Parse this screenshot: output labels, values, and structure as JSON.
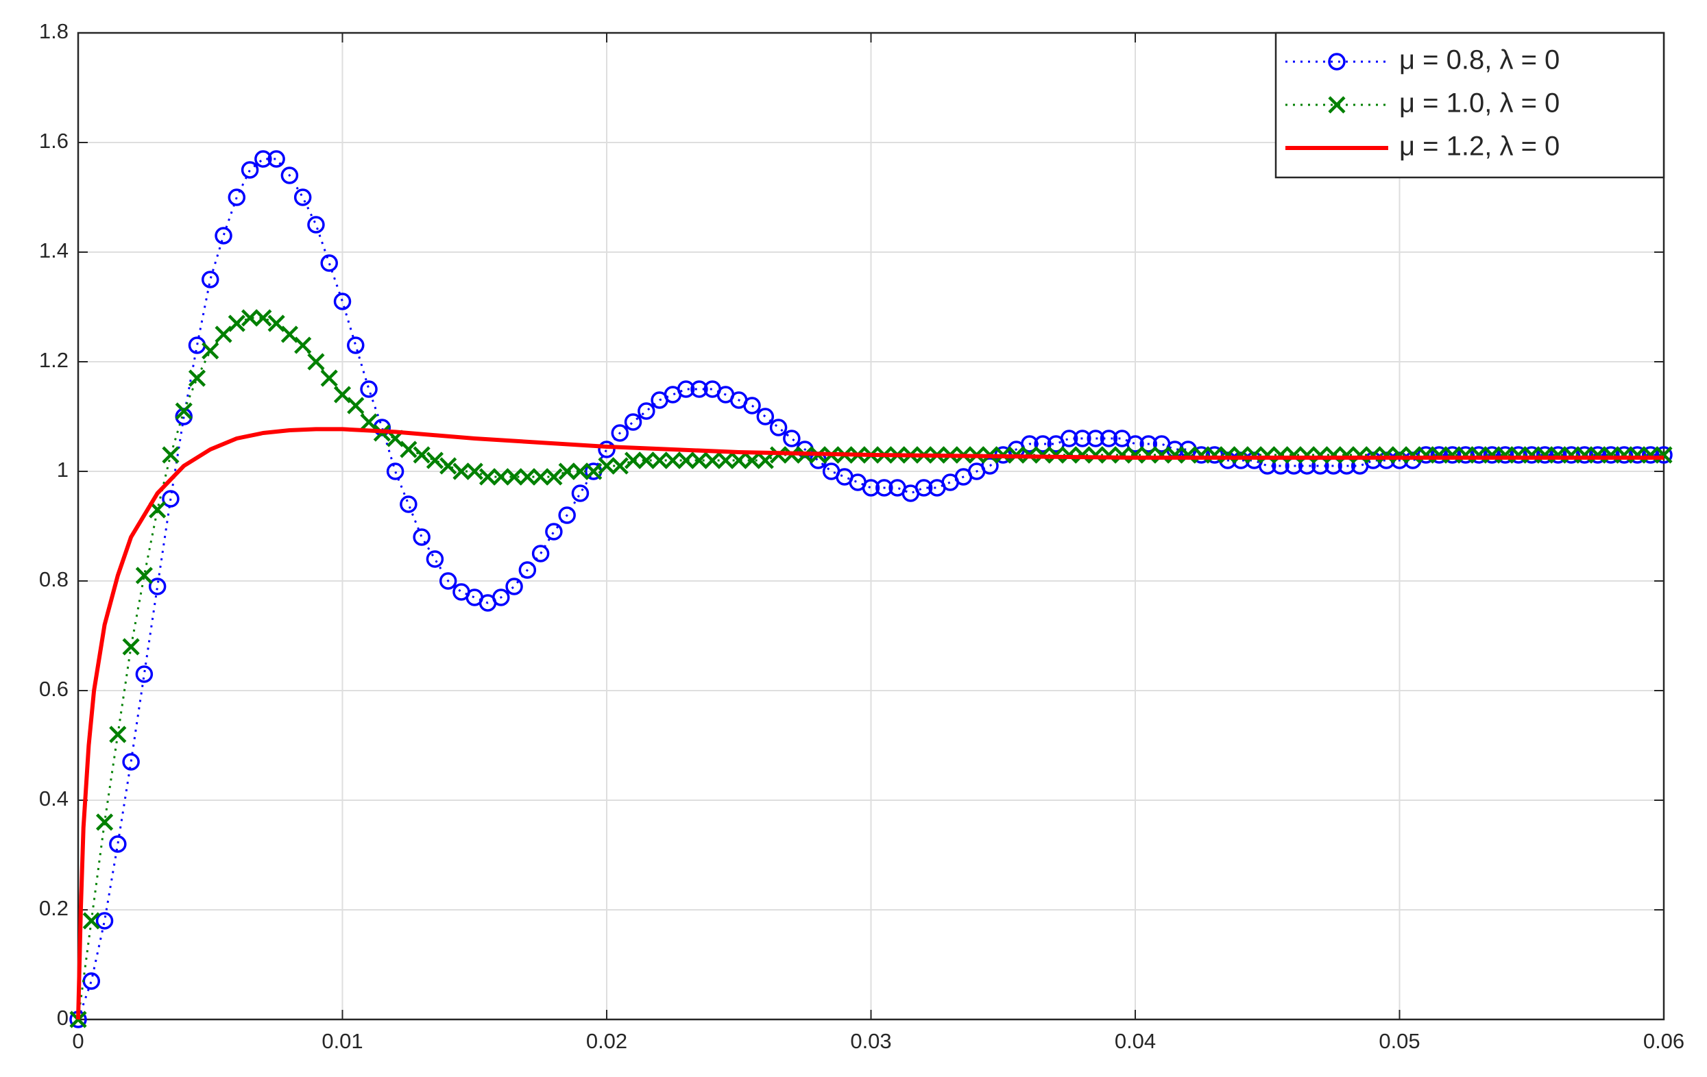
{
  "chart_data": {
    "type": "line",
    "x": [
      0,
      0.0005,
      0.001,
      0.0015,
      0.002,
      0.0025,
      0.003,
      0.0035,
      0.004,
      0.0045,
      0.005,
      0.0055,
      0.006,
      0.0065,
      0.007,
      0.0075,
      0.008,
      0.0085,
      0.009,
      0.0095,
      0.01,
      0.0105,
      0.011,
      0.0115,
      0.012,
      0.0125,
      0.013,
      0.0135,
      0.014,
      0.0145,
      0.015,
      0.0155,
      0.016,
      0.0165,
      0.017,
      0.0175,
      0.018,
      0.0185,
      0.019,
      0.0195,
      0.02,
      0.0205,
      0.021,
      0.0215,
      0.022,
      0.0225,
      0.023,
      0.0235,
      0.024,
      0.0245,
      0.025,
      0.0255,
      0.026,
      0.0265,
      0.027,
      0.0275,
      0.028,
      0.0285,
      0.029,
      0.0295,
      0.03,
      0.0305,
      0.031,
      0.0315,
      0.032,
      0.0325,
      0.033,
      0.0335,
      0.034,
      0.0345,
      0.035,
      0.0355,
      0.036,
      0.0365,
      0.037,
      0.0375,
      0.038,
      0.0385,
      0.039,
      0.0395,
      0.04,
      0.0405,
      0.041,
      0.0415,
      0.042,
      0.0425,
      0.043,
      0.0435,
      0.044,
      0.0445,
      0.045,
      0.0455,
      0.046,
      0.0465,
      0.047,
      0.0475,
      0.048,
      0.0485,
      0.049,
      0.0495,
      0.05,
      0.0505,
      0.051,
      0.0515,
      0.052,
      0.0525,
      0.053,
      0.0535,
      0.054,
      0.0545,
      0.055,
      0.0555,
      0.056,
      0.0565,
      0.057,
      0.0575,
      0.058,
      0.0585,
      0.059,
      0.0595,
      0.06
    ],
    "series": [
      {
        "name": "μ = 0.8, λ = 0",
        "color": "#0000ff",
        "marker": "circle",
        "dash": "dotted",
        "values": [
          0,
          0.07,
          0.18,
          0.32,
          0.47,
          0.63,
          0.79,
          0.95,
          1.1,
          1.23,
          1.35,
          1.43,
          1.5,
          1.55,
          1.57,
          1.57,
          1.54,
          1.5,
          1.45,
          1.38,
          1.31,
          1.23,
          1.15,
          1.08,
          1.0,
          0.94,
          0.88,
          0.84,
          0.8,
          0.78,
          0.77,
          0.76,
          0.77,
          0.79,
          0.82,
          0.85,
          0.89,
          0.92,
          0.96,
          1.0,
          1.04,
          1.07,
          1.09,
          1.11,
          1.13,
          1.14,
          1.15,
          1.15,
          1.15,
          1.14,
          1.13,
          1.12,
          1.1,
          1.08,
          1.06,
          1.04,
          1.02,
          1.0,
          0.99,
          0.98,
          0.97,
          0.97,
          0.97,
          0.96,
          0.97,
          0.97,
          0.98,
          0.99,
          1.0,
          1.01,
          1.03,
          1.04,
          1.05,
          1.05,
          1.05,
          1.06,
          1.06,
          1.06,
          1.06,
          1.06,
          1.05,
          1.05,
          1.05,
          1.04,
          1.04,
          1.03,
          1.03,
          1.02,
          1.02,
          1.02,
          1.01,
          1.01,
          1.01,
          1.01,
          1.01,
          1.01,
          1.01,
          1.01,
          1.02,
          1.02,
          1.02,
          1.02,
          1.03,
          1.03,
          1.03,
          1.03,
          1.03,
          1.03,
          1.03,
          1.03,
          1.03,
          1.03,
          1.03,
          1.03,
          1.03,
          1.03,
          1.03,
          1.03,
          1.03,
          1.03,
          1.03
        ]
      },
      {
        "name": "μ = 1.0, λ = 0",
        "color": "#008000",
        "marker": "x",
        "dash": "dotted",
        "values": [
          0,
          0.18,
          0.36,
          0.52,
          0.68,
          0.81,
          0.93,
          1.03,
          1.11,
          1.17,
          1.22,
          1.25,
          1.27,
          1.28,
          1.28,
          1.27,
          1.25,
          1.23,
          1.2,
          1.17,
          1.14,
          1.12,
          1.09,
          1.07,
          1.06,
          1.04,
          1.03,
          1.02,
          1.01,
          1.0,
          1.0,
          0.99,
          0.99,
          0.99,
          0.99,
          0.99,
          0.99,
          1.0,
          1.0,
          1.0,
          1.01,
          1.01,
          1.02,
          1.02,
          1.02,
          1.02,
          1.02,
          1.02,
          1.02,
          1.02,
          1.02,
          1.02,
          1.02,
          1.03,
          1.03,
          1.03,
          1.03,
          1.03,
          1.03,
          1.03,
          1.03,
          1.03,
          1.03,
          1.03,
          1.03,
          1.03,
          1.03,
          1.03,
          1.03,
          1.03,
          1.03,
          1.03,
          1.03,
          1.03,
          1.03,
          1.03,
          1.03,
          1.03,
          1.03,
          1.03,
          1.03,
          1.03,
          1.03,
          1.03,
          1.03,
          1.03,
          1.03,
          1.03,
          1.03,
          1.03,
          1.03,
          1.03,
          1.03,
          1.03,
          1.03,
          1.03,
          1.03,
          1.03,
          1.03,
          1.03,
          1.03,
          1.03,
          1.03,
          1.03,
          1.03,
          1.03,
          1.03,
          1.03,
          1.03,
          1.03,
          1.03,
          1.03,
          1.03,
          1.03,
          1.03,
          1.03,
          1.03,
          1.03,
          1.03,
          1.03,
          1.03
        ]
      },
      {
        "name": "μ = 1.2, λ = 0",
        "color": "#ff0000",
        "marker": "none",
        "dash": "solid",
        "x": [
          0,
          0.0001,
          0.0002,
          0.0004,
          0.0006,
          0.001,
          0.0015,
          0.002,
          0.003,
          0.004,
          0.005,
          0.006,
          0.007,
          0.008,
          0.009,
          0.01,
          0.012,
          0.015,
          0.02,
          0.025,
          0.03,
          0.04,
          0.05,
          0.06
        ],
        "values": [
          0,
          0.2,
          0.35,
          0.5,
          0.6,
          0.72,
          0.81,
          0.88,
          0.96,
          1.01,
          1.04,
          1.06,
          1.07,
          1.075,
          1.077,
          1.077,
          1.072,
          1.06,
          1.045,
          1.035,
          1.03,
          1.025,
          1.025,
          1.025
        ]
      }
    ],
    "xlim": [
      0,
      0.06
    ],
    "xticks": [
      0,
      0.01,
      0.02,
      0.03,
      0.04,
      0.05,
      0.06
    ],
    "ylim": [
      0,
      1.8
    ],
    "yticks": [
      0,
      0.2,
      0.4,
      0.6,
      0.8,
      1,
      1.2,
      1.4,
      1.6,
      1.8
    ],
    "grid": true,
    "legend": "northeast"
  }
}
